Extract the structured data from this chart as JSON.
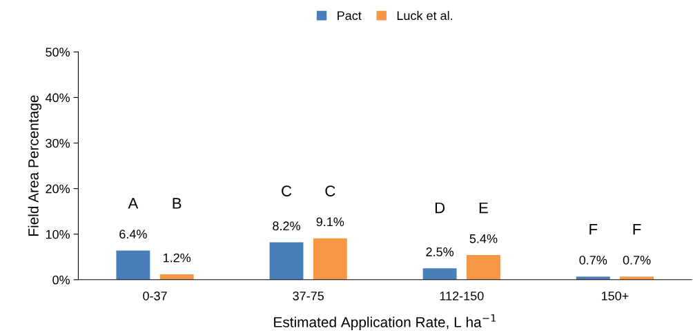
{
  "chart_data": {
    "type": "bar",
    "xlabel": "Estimated Application Rate, L ha$^{−1}$",
    "ylabel": "Field Area Percentage",
    "categories": [
      "0-37",
      "37-75",
      "112-150",
      "150+"
    ],
    "series": [
      {
        "name": "Pact",
        "color": "#4a7ebb",
        "values": [
          6.4,
          8.2,
          2.5,
          0.7
        ],
        "value_labels": [
          "6.4%",
          "8.2%",
          "2.5%",
          "0.7%"
        ]
      },
      {
        "name": "Luck et al.",
        "color": "#f79646",
        "values": [
          1.2,
          9.1,
          5.4,
          0.7
        ],
        "value_labels": [
          "1.2%",
          "9.1%",
          "5.4%",
          "0.7%"
        ]
      }
    ],
    "ylim": [
      0,
      50
    ],
    "yticks": [
      {
        "value": 0,
        "label": "0%"
      },
      {
        "value": 10,
        "label": "10%"
      },
      {
        "value": 20,
        "label": "20%"
      },
      {
        "value": 30,
        "label": "30%"
      },
      {
        "value": 40,
        "label": "40%"
      },
      {
        "value": 50,
        "label": "50%"
      }
    ],
    "annotations": [
      "A",
      "B",
      "C",
      "C",
      "D",
      "E",
      "F",
      "F"
    ],
    "grid": false,
    "legend": "top"
  }
}
